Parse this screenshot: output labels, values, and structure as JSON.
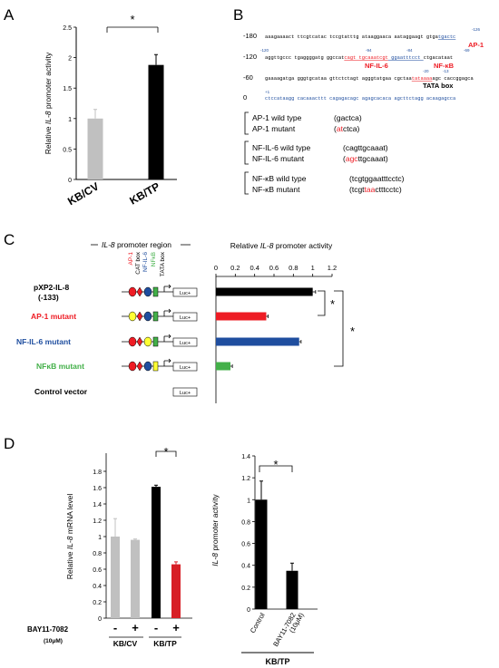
{
  "panels": {
    "A": "A",
    "B": "B",
    "C": "C",
    "D": "D"
  },
  "chart_data": [
    {
      "panel": "A",
      "type": "bar",
      "categories": [
        "KB/CV",
        "KB/TP"
      ],
      "values": [
        1.0,
        1.88
      ],
      "errors": [
        0.15,
        0.17
      ],
      "ylabel_pre": "Relative ",
      "ylabel_italic": "IL-8",
      "ylabel_post": " promoter activity",
      "ylim": [
        0,
        2.5
      ],
      "yticks": [
        "0",
        "0.5",
        "1",
        "1.5",
        "2",
        "2.5"
      ],
      "significance": "*",
      "colors": [
        "#c0c0c0",
        "#000000"
      ]
    },
    {
      "panel": "C",
      "type": "bar",
      "orientation": "horizontal",
      "title_pre": "Relative ",
      "title_italic": "IL-8",
      "title_post": " promoter activity",
      "xlim": [
        0,
        1.2
      ],
      "xticks": [
        "0",
        "0.2",
        "0.4",
        "0.6",
        "0.8",
        "1",
        "1.2"
      ],
      "categories": [
        "pXP2-IL-8 (-133)",
        "AP-1 mutant",
        "NF-IL-6 mutant",
        "NFκB mutant",
        "Control vector"
      ],
      "values": [
        1.0,
        0.52,
        0.86,
        0.15,
        0.0
      ],
      "errors": [
        0.03,
        0.02,
        0.02,
        0.02,
        0.0
      ],
      "colors": [
        "#000000",
        "#ee1c24",
        "#1f4e9f",
        "#43b049",
        "#000000"
      ],
      "significance": [
        "*",
        "*"
      ]
    },
    {
      "panel": "D-left",
      "type": "bar",
      "categories": [
        "-",
        "+",
        "-",
        "+"
      ],
      "values": [
        1.0,
        0.96,
        1.61,
        0.66
      ],
      "errors": [
        0.22,
        0.01,
        0.02,
        0.03
      ],
      "ylabel_pre": "Relative ",
      "ylabel_italic": "IL-8",
      "ylabel_post": " mRNA level",
      "ylim": [
        0,
        1.8
      ],
      "yticks": [
        "0",
        "0.2",
        "0.4",
        "0.6",
        "0.8",
        "1",
        "1.2",
        "1.4",
        "1.6",
        "1.8"
      ],
      "colors": [
        "#c0c0c0",
        "#c0c0c0",
        "#000000",
        "#d71f26"
      ],
      "groups": [
        "KB/CV",
        "KB/TP"
      ],
      "treatment": "BAY11-7082",
      "treatment_conc": "(10μM)",
      "significance": "*"
    },
    {
      "panel": "D-right",
      "type": "bar",
      "categories": [
        "Control",
        "BAY11-7082 (10μM)"
      ],
      "category_line1": [
        "Control",
        "BAY11-7082"
      ],
      "category_line2": [
        "",
        "(10μM)"
      ],
      "values": [
        1.0,
        0.35
      ],
      "errors": [
        0.17,
        0.07
      ],
      "ylabel_italic": "IL-8",
      "ylabel_post": " promoter activity",
      "ylim": [
        0,
        1.4
      ],
      "yticks": [
        "0",
        "0.2",
        "0.4",
        "0.6",
        "0.8",
        "1",
        "1.2",
        "1.4"
      ],
      "colors": [
        "#000000",
        "#000000"
      ],
      "group": "KB/TP",
      "significance": "*"
    }
  ],
  "panelB": {
    "positions": [
      "-180",
      "-120",
      "-60",
      "0"
    ],
    "seq_lines": [
      "aaagaaaact ttcgtcatac tccgtatttg ataaggaaca aataggaagt gtga",
      "aggttgccc tgaggggatg ggccat",
      "gaaaagatga gggtgcataa gttctctagt agggtatgaa cgctaa",
      "ctccataagg cacaaacttt cagagacagc agagcacaca agcttctagg acaagagcca"
    ],
    "seq_tail_1": "tgactc",
    "seq_mid_2a": "cagt tgcaaatcgt",
    "seq_mid_2b": " ggaatttcct ",
    "seq_tail_2": "ctgacataat",
    "seq_tata": "tataaaa",
    "seq_tail_3": "agc caccggagca",
    "num_m126": "-126",
    "num_m120b": "-120",
    "num_m94": "-94",
    "num_m84": "-84",
    "num_m69": "-69",
    "num_m20": "-20",
    "num_m13": "-13",
    "num_p1": "+1",
    "site_ap1": "AP-1",
    "site_nfil6": "NF-IL-6",
    "site_nfkb": "NF-κB",
    "site_tata": "TATA box",
    "legend": [
      {
        "label": "AP-1 wild type",
        "seq": "gactca",
        "seq_pre": "",
        "seq_red": "",
        "seq_post": ""
      },
      {
        "label": "AP-1 mutant",
        "seq": "",
        "seq_pre": "",
        "seq_red": "at",
        "seq_post": "ctca"
      },
      {
        "label": "NF-IL-6 wild type",
        "seq": "cagttgcaaat",
        "seq_pre": "",
        "seq_red": "",
        "seq_post": ""
      },
      {
        "label": "NF-IL-6 mutant",
        "seq": "",
        "seq_pre": "",
        "seq_red": "agc",
        "seq_post": "ttgcaaat"
      },
      {
        "label": "NF-κB wild type",
        "seq": "tcgtggaatttcctc",
        "seq_pre": "",
        "seq_red": "",
        "seq_post": ""
      },
      {
        "label": "NF-κB mutant",
        "seq": "",
        "seq_pre": "tcgt",
        "seq_red": "taa",
        "seq_post": "ctttcctc"
      }
    ]
  },
  "panelC": {
    "region_pre": "",
    "region_italic": "IL-8",
    "region_post": " promoter region",
    "elements": [
      "AP-1",
      "CAT box",
      "NF-IL-6",
      "NFκB",
      "TATA box"
    ],
    "element_colors": [
      "#ee1c24",
      "#000000",
      "#1f4e9f",
      "#43b049",
      "#000000"
    ],
    "constructs": [
      "pXP2-IL-8",
      "AP-1 mutant",
      "NF-IL-6 mutant",
      "NFκB mutant",
      "Control vector"
    ],
    "construct_sub": "(-133)",
    "luc": "Luc+"
  }
}
